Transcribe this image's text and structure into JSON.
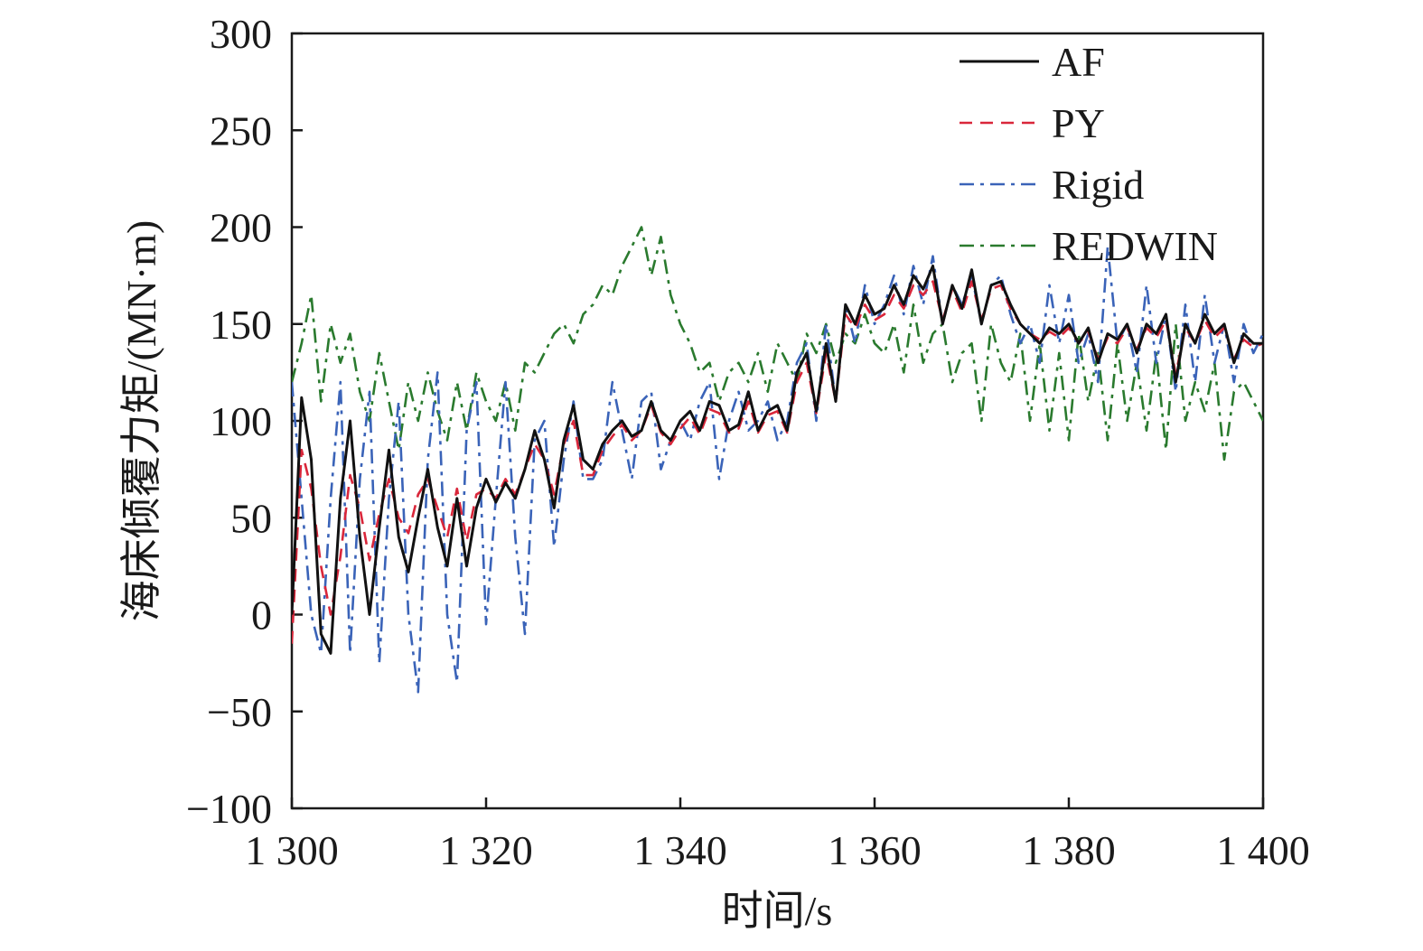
{
  "chart_data": {
    "type": "line",
    "title": "",
    "xlabel": "时间/s",
    "ylabel": "海床倾覆力矩/(MN·m)",
    "xlim": [
      1300,
      1400
    ],
    "ylim": [
      -100,
      300
    ],
    "x_ticks": [
      1300,
      1320,
      1340,
      1360,
      1380,
      1400
    ],
    "x_tick_labels": [
      "1 300",
      "1 320",
      "1 340",
      "1 360",
      "1 380",
      "1 400"
    ],
    "y_ticks": [
      -100,
      -50,
      0,
      50,
      100,
      150,
      200,
      250,
      300
    ],
    "y_tick_labels": [
      "−100",
      "−50",
      "0",
      "50",
      "100",
      "150",
      "200",
      "250",
      "300"
    ],
    "grid": false,
    "legend_position": "top-right",
    "series": [
      {
        "name": "AF",
        "color": "#111111",
        "style": "solid",
        "x": [
          1300,
          1301,
          1302,
          1303,
          1304,
          1305,
          1306,
          1307,
          1308,
          1309,
          1310,
          1311,
          1312,
          1313,
          1314,
          1315,
          1316,
          1317,
          1318,
          1319,
          1320,
          1321,
          1322,
          1323,
          1324,
          1325,
          1326,
          1327,
          1328,
          1329,
          1330,
          1331,
          1332,
          1333,
          1334,
          1335,
          1336,
          1337,
          1338,
          1339,
          1340,
          1341,
          1342,
          1343,
          1344,
          1345,
          1346,
          1347,
          1348,
          1349,
          1350,
          1351,
          1352,
          1353,
          1354,
          1355,
          1356,
          1357,
          1358,
          1359,
          1360,
          1361,
          1362,
          1363,
          1364,
          1365,
          1366,
          1367,
          1368,
          1369,
          1370,
          1371,
          1372,
          1373,
          1374,
          1375,
          1376,
          1377,
          1378,
          1379,
          1380,
          1381,
          1382,
          1383,
          1384,
          1385,
          1386,
          1387,
          1388,
          1389,
          1390,
          1391,
          1392,
          1393,
          1394,
          1395,
          1396,
          1397,
          1398,
          1399,
          1400
        ],
        "values": [
          0,
          112,
          80,
          -10,
          -20,
          60,
          100,
          40,
          0,
          45,
          85,
          40,
          22,
          50,
          75,
          45,
          25,
          60,
          25,
          55,
          70,
          58,
          68,
          60,
          75,
          95,
          80,
          55,
          90,
          108,
          80,
          75,
          88,
          95,
          100,
          92,
          95,
          110,
          95,
          90,
          100,
          105,
          95,
          110,
          108,
          95,
          98,
          115,
          95,
          105,
          108,
          95,
          125,
          135,
          105,
          140,
          110,
          160,
          150,
          165,
          155,
          158,
          170,
          160,
          175,
          168,
          180,
          150,
          170,
          158,
          178,
          150,
          170,
          172,
          160,
          150,
          145,
          140,
          148,
          145,
          150,
          140,
          148,
          130,
          145,
          142,
          150,
          135,
          150,
          145,
          155,
          120,
          150,
          140,
          155,
          145,
          150,
          130,
          145,
          140,
          140
        ]
      },
      {
        "name": "PY",
        "color": "#d9263a",
        "style": "dashed",
        "x": [
          1300,
          1301,
          1302,
          1303,
          1304,
          1305,
          1306,
          1307,
          1308,
          1309,
          1310,
          1311,
          1312,
          1313,
          1314,
          1315,
          1316,
          1317,
          1318,
          1319,
          1320,
          1321,
          1322,
          1323,
          1324,
          1325,
          1326,
          1327,
          1328,
          1329,
          1330,
          1331,
          1332,
          1333,
          1334,
          1335,
          1336,
          1337,
          1338,
          1339,
          1340,
          1341,
          1342,
          1343,
          1344,
          1345,
          1346,
          1347,
          1348,
          1349,
          1350,
          1351,
          1352,
          1353,
          1354,
          1355,
          1356,
          1357,
          1358,
          1359,
          1360,
          1361,
          1362,
          1363,
          1364,
          1365,
          1366,
          1367,
          1368,
          1369,
          1370,
          1371,
          1372,
          1373,
          1374,
          1375,
          1376,
          1377,
          1378,
          1379,
          1380,
          1381,
          1382,
          1383,
          1384,
          1385,
          1386,
          1387,
          1388,
          1389,
          1390,
          1391,
          1392,
          1393,
          1394,
          1395,
          1396,
          1397,
          1398,
          1399,
          1400
        ],
        "values": [
          -15,
          85,
          65,
          25,
          0,
          30,
          72,
          55,
          28,
          52,
          70,
          50,
          42,
          62,
          70,
          55,
          40,
          65,
          38,
          62,
          65,
          60,
          70,
          62,
          75,
          88,
          80,
          62,
          88,
          100,
          72,
          72,
          85,
          92,
          98,
          90,
          95,
          108,
          94,
          88,
          96,
          102,
          93,
          106,
          104,
          94,
          96,
          110,
          94,
          103,
          105,
          94,
          120,
          130,
          104,
          135,
          110,
          155,
          148,
          160,
          152,
          155,
          165,
          158,
          170,
          165,
          172,
          152,
          168,
          156,
          172,
          152,
          168,
          170,
          158,
          150,
          145,
          142,
          146,
          143,
          148,
          140,
          146,
          132,
          143,
          140,
          148,
          137,
          148,
          143,
          152,
          124,
          148,
          140,
          152,
          143,
          148,
          132,
          142,
          138,
          140
        ]
      },
      {
        "name": "Rigid",
        "color": "#3a63b8",
        "style": "dash-dot",
        "x": [
          1300,
          1301,
          1302,
          1303,
          1304,
          1305,
          1306,
          1307,
          1308,
          1309,
          1310,
          1311,
          1312,
          1313,
          1314,
          1315,
          1316,
          1317,
          1318,
          1319,
          1320,
          1321,
          1322,
          1323,
          1324,
          1325,
          1326,
          1327,
          1328,
          1329,
          1330,
          1331,
          1332,
          1333,
          1334,
          1335,
          1336,
          1337,
          1338,
          1339,
          1340,
          1341,
          1342,
          1343,
          1344,
          1345,
          1346,
          1347,
          1348,
          1349,
          1350,
          1351,
          1352,
          1353,
          1354,
          1355,
          1356,
          1357,
          1358,
          1359,
          1360,
          1361,
          1362,
          1363,
          1364,
          1365,
          1366,
          1367,
          1368,
          1369,
          1370,
          1371,
          1372,
          1373,
          1374,
          1375,
          1376,
          1377,
          1378,
          1379,
          1380,
          1381,
          1382,
          1383,
          1384,
          1385,
          1386,
          1387,
          1388,
          1389,
          1390,
          1391,
          1392,
          1393,
          1394,
          1395,
          1396,
          1397,
          1398,
          1399,
          1400
        ],
        "values": [
          120,
          60,
          0,
          -20,
          60,
          120,
          -20,
          70,
          115,
          -25,
          60,
          110,
          0,
          -40,
          80,
          125,
          0,
          -35,
          95,
          120,
          -5,
          60,
          120,
          40,
          -10,
          90,
          100,
          35,
          80,
          110,
          70,
          70,
          80,
          120,
          95,
          70,
          110,
          115,
          75,
          90,
          100,
          90,
          110,
          120,
          70,
          100,
          115,
          95,
          100,
          110,
          90,
          100,
          130,
          140,
          100,
          150,
          110,
          160,
          140,
          170,
          150,
          160,
          175,
          155,
          180,
          160,
          185,
          150,
          170,
          160,
          175,
          150,
          170,
          175,
          155,
          140,
          150,
          130,
          170,
          140,
          165,
          130,
          145,
          120,
          190,
          140,
          150,
          125,
          170,
          130,
          155,
          115,
          160,
          120,
          165,
          130,
          150,
          120,
          150,
          135,
          145
        ]
      },
      {
        "name": "REDWIN",
        "color": "#2a7a2e",
        "style": "dash-dot",
        "x": [
          1300,
          1301,
          1302,
          1303,
          1304,
          1305,
          1306,
          1307,
          1308,
          1309,
          1310,
          1311,
          1312,
          1313,
          1314,
          1315,
          1316,
          1317,
          1318,
          1319,
          1320,
          1321,
          1322,
          1323,
          1324,
          1325,
          1326,
          1327,
          1328,
          1329,
          1330,
          1331,
          1332,
          1333,
          1334,
          1335,
          1336,
          1337,
          1338,
          1339,
          1340,
          1341,
          1342,
          1343,
          1344,
          1345,
          1346,
          1347,
          1348,
          1349,
          1350,
          1351,
          1352,
          1353,
          1354,
          1355,
          1356,
          1357,
          1358,
          1359,
          1360,
          1361,
          1362,
          1363,
          1364,
          1365,
          1366,
          1367,
          1368,
          1369,
          1370,
          1371,
          1372,
          1373,
          1374,
          1375,
          1376,
          1377,
          1378,
          1379,
          1380,
          1381,
          1382,
          1383,
          1384,
          1385,
          1386,
          1387,
          1388,
          1389,
          1390,
          1391,
          1392,
          1393,
          1394,
          1395,
          1396,
          1397,
          1398,
          1399,
          1400
        ],
        "values": [
          120,
          140,
          165,
          110,
          150,
          130,
          145,
          115,
          100,
          135,
          110,
          85,
          120,
          100,
          125,
          105,
          90,
          120,
          95,
          125,
          110,
          100,
          120,
          95,
          130,
          125,
          135,
          145,
          150,
          140,
          155,
          160,
          170,
          165,
          180,
          190,
          200,
          175,
          195,
          165,
          150,
          140,
          125,
          130,
          110,
          125,
          130,
          120,
          135,
          115,
          140,
          130,
          120,
          145,
          135,
          150,
          130,
          145,
          140,
          155,
          140,
          135,
          150,
          125,
          160,
          130,
          145,
          150,
          120,
          135,
          140,
          100,
          150,
          130,
          120,
          145,
          100,
          140,
          95,
          135,
          90,
          145,
          110,
          135,
          90,
          140,
          100,
          130,
          95,
          135,
          85,
          150,
          100,
          120,
          105,
          130,
          80,
          115,
          120,
          110,
          100
        ]
      }
    ]
  }
}
